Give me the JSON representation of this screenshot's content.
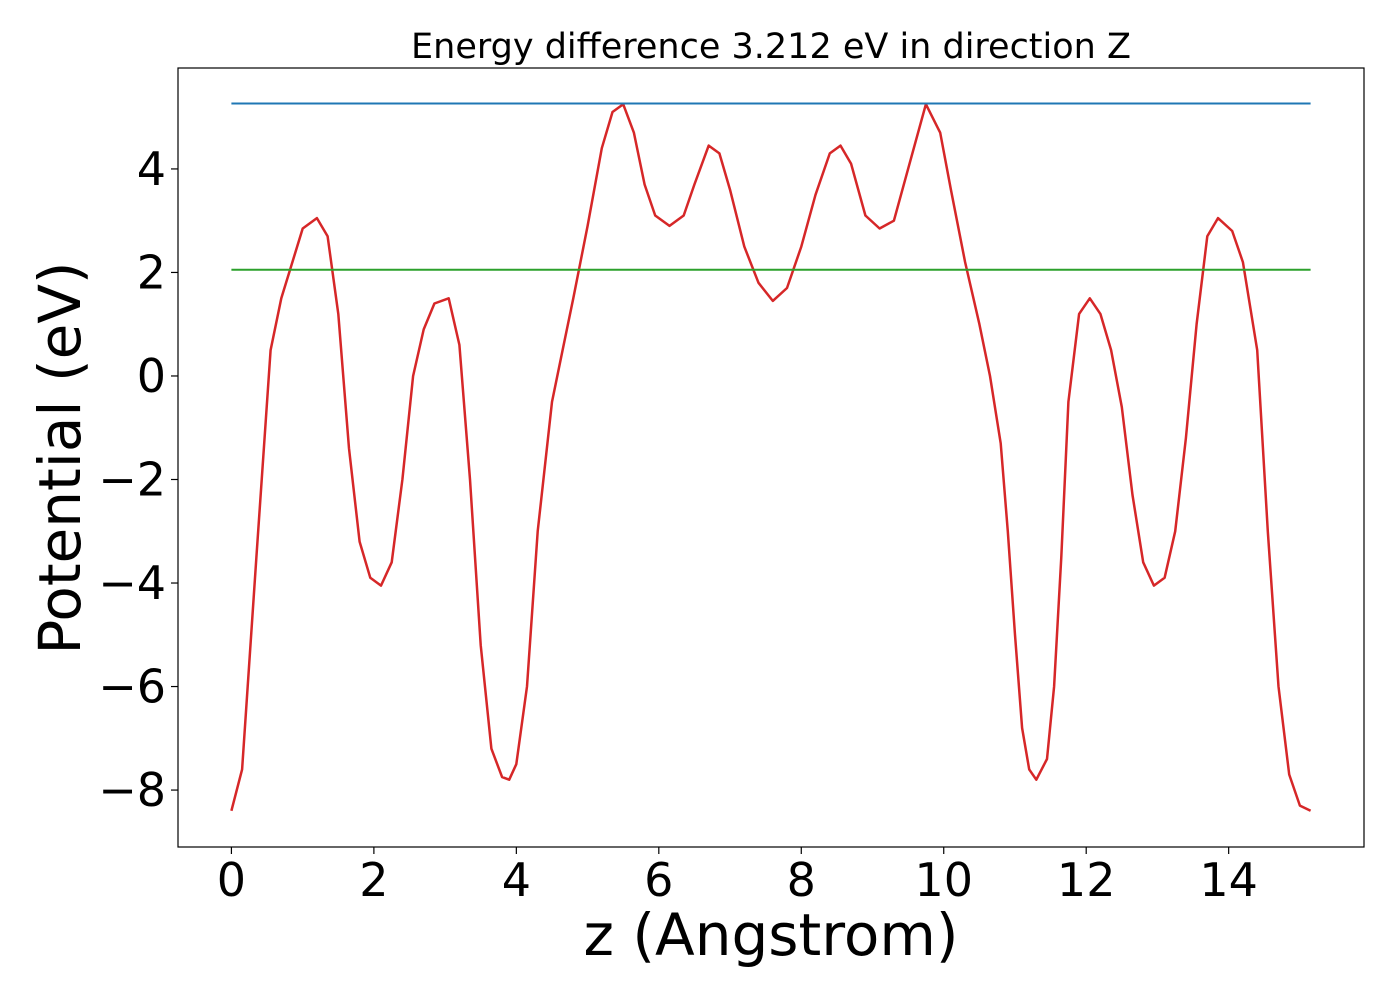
{
  "chart_data": {
    "type": "line",
    "title": "Energy difference 3.212 eV in direction Z",
    "xlabel": "z (Angstrom)",
    "ylabel": "Potential (eV)",
    "xlim": [
      -0.75,
      15.9
    ],
    "ylim": [
      -9.1,
      5.95
    ],
    "xticks": [
      0,
      2,
      4,
      6,
      8,
      10,
      12,
      14
    ],
    "yticks": [
      -8,
      -6,
      -4,
      -2,
      0,
      2,
      4
    ],
    "xtick_labels": [
      "0",
      "2",
      "4",
      "6",
      "8",
      "10",
      "12",
      "14"
    ],
    "ytick_labels": [
      "−8",
      "−6",
      "−4",
      "−2",
      "0",
      "2",
      "4"
    ],
    "grid": false,
    "legend": "none",
    "series": [
      {
        "color": "#d62728",
        "x": [
          0,
          0.15,
          0.35,
          0.55,
          0.7,
          1.0,
          1.2,
          1.35,
          1.5,
          1.65,
          1.8,
          1.95,
          2.1,
          2.25,
          2.4,
          2.55,
          2.7,
          2.85,
          3.05,
          3.2,
          3.35,
          3.5,
          3.65,
          3.8,
          3.9,
          4.0,
          4.15,
          4.3,
          4.5,
          4.65,
          4.8,
          5.0,
          5.2,
          5.35,
          5.5,
          5.65,
          5.8,
          5.95,
          6.15,
          6.35,
          6.5,
          6.7,
          6.85,
          7.0,
          7.2,
          7.4,
          7.6,
          7.8,
          8.0,
          8.2,
          8.4,
          8.55,
          8.7,
          8.9,
          9.1,
          9.3,
          9.5,
          9.75,
          9.95,
          10.1,
          10.3,
          10.5,
          10.65,
          10.8,
          10.9,
          11.0,
          11.1,
          11.2,
          11.3,
          11.45,
          11.55,
          11.65,
          11.75,
          11.9,
          12.05,
          12.2,
          12.35,
          12.5,
          12.65,
          12.8,
          12.95,
          13.1,
          13.25,
          13.4,
          13.55,
          13.7,
          13.85,
          14.05,
          14.2,
          14.4,
          14.55,
          14.7,
          14.85,
          15.0,
          15.15
        ],
        "y": [
          -8.4,
          -7.6,
          -3.5,
          0.5,
          1.5,
          2.85,
          3.05,
          2.7,
          1.2,
          -1.4,
          -3.2,
          -3.9,
          -4.05,
          -3.6,
          -2.0,
          0.0,
          0.9,
          1.4,
          1.5,
          0.6,
          -2.0,
          -5.2,
          -7.2,
          -7.75,
          -7.8,
          -7.5,
          -6.0,
          -3.0,
          -0.5,
          0.5,
          1.5,
          2.9,
          4.4,
          5.1,
          5.25,
          4.7,
          3.7,
          3.1,
          2.9,
          3.1,
          3.7,
          4.45,
          4.3,
          3.6,
          2.5,
          1.8,
          1.45,
          1.7,
          2.5,
          3.5,
          4.3,
          4.45,
          4.1,
          3.1,
          2.85,
          3.0,
          4.0,
          5.25,
          4.7,
          3.6,
          2.2,
          1.0,
          0.0,
          -1.3,
          -3.0,
          -5.0,
          -6.8,
          -7.6,
          -7.8,
          -7.4,
          -6.0,
          -3.5,
          -0.5,
          1.2,
          1.5,
          1.2,
          0.5,
          -0.6,
          -2.3,
          -3.6,
          -4.05,
          -3.9,
          -3.0,
          -1.2,
          1.0,
          2.7,
          3.05,
          2.8,
          2.2,
          0.5,
          -3.0,
          -6.0,
          -7.7,
          -8.3,
          -8.4
        ]
      },
      {
        "color": "#1f77b4",
        "x": [
          0,
          15.15
        ],
        "y": [
          5.265,
          5.265
        ]
      },
      {
        "color": "#2ca02c",
        "x": [
          0,
          15.15
        ],
        "y": [
          2.053,
          2.053
        ]
      }
    ]
  }
}
